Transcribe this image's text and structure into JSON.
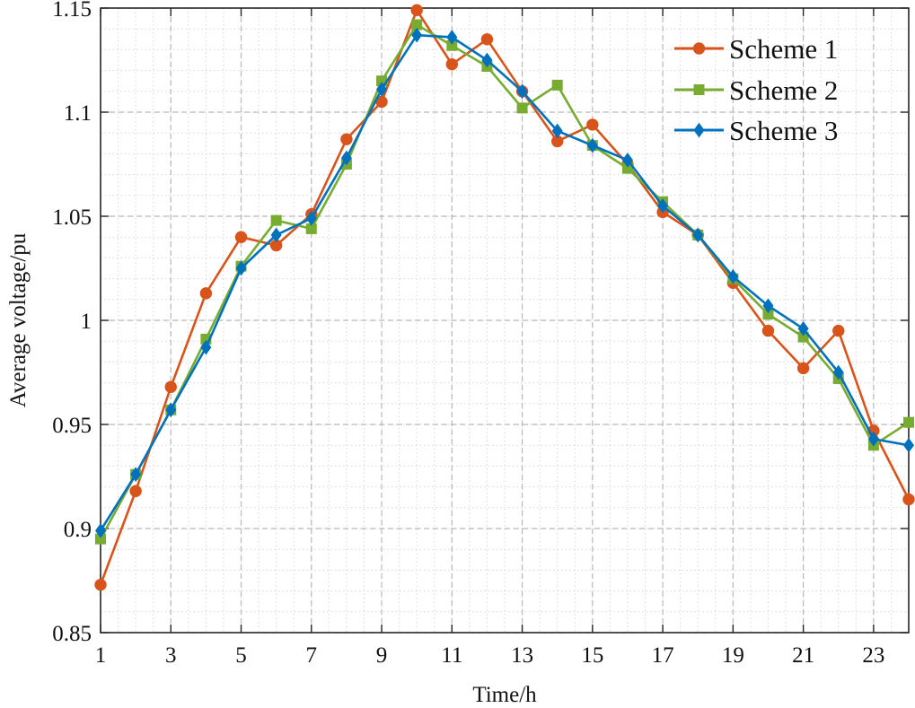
{
  "chart_data": {
    "type": "line",
    "title": "",
    "xlabel": "Time/h",
    "ylabel": "Average voltage/pu",
    "x": [
      1,
      2,
      3,
      4,
      5,
      6,
      7,
      8,
      9,
      10,
      11,
      12,
      13,
      14,
      15,
      16,
      17,
      18,
      19,
      20,
      21,
      22,
      23,
      24
    ],
    "xlim": [
      1,
      24
    ],
    "ylim": [
      0.85,
      1.15
    ],
    "x_ticks": [
      1,
      3,
      5,
      7,
      9,
      11,
      13,
      15,
      17,
      19,
      21,
      23
    ],
    "y_ticks": [
      0.85,
      0.9,
      0.95,
      1,
      1.05,
      1.1,
      1.15
    ],
    "x_tick_labels": [
      "1",
      "3",
      "5",
      "7",
      "9",
      "11",
      "13",
      "15",
      "17",
      "19",
      "21",
      "23"
    ],
    "y_tick_labels": [
      "0.85",
      "0.9",
      "0.95",
      "1",
      "1.05",
      "1.1",
      "1.15"
    ],
    "grid": true,
    "minor_grid": true,
    "legend": "top-right",
    "series": [
      {
        "name": "Scheme 1",
        "color": "#D9541A",
        "marker": "circle",
        "values": [
          0.873,
          0.918,
          0.968,
          1.013,
          1.04,
          1.036,
          1.051,
          1.087,
          1.105,
          1.149,
          1.123,
          1.135,
          1.11,
          1.086,
          1.094,
          1.075,
          1.052,
          1.041,
          1.018,
          0.995,
          0.977,
          0.995,
          0.947,
          0.914
        ]
      },
      {
        "name": "Scheme 2",
        "color": "#77AC30",
        "marker": "square",
        "values": [
          0.895,
          0.926,
          0.957,
          0.991,
          1.026,
          1.048,
          1.044,
          1.075,
          1.115,
          1.142,
          1.132,
          1.122,
          1.102,
          1.113,
          1.084,
          1.073,
          1.057,
          1.041,
          1.02,
          1.003,
          0.992,
          0.972,
          0.94,
          0.951
        ]
      },
      {
        "name": "Scheme 3",
        "color": "#0072BD",
        "marker": "diamond",
        "values": [
          0.899,
          0.926,
          0.957,
          0.987,
          1.025,
          1.041,
          1.049,
          1.078,
          1.111,
          1.137,
          1.136,
          1.125,
          1.11,
          1.091,
          1.084,
          1.077,
          1.055,
          1.041,
          1.021,
          1.007,
          0.996,
          0.975,
          0.943,
          0.94
        ]
      }
    ]
  }
}
